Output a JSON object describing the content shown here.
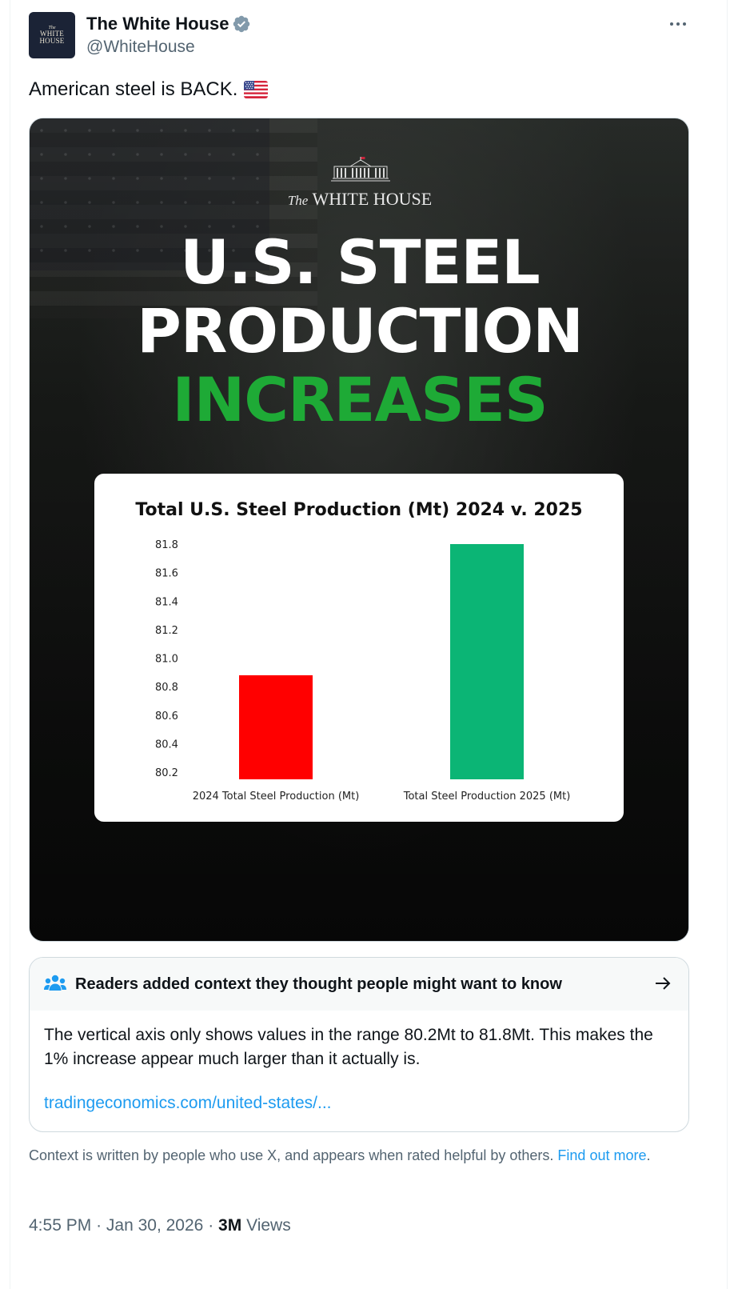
{
  "author": {
    "display_name": "The White House",
    "handle": "@WhiteHouse",
    "avatar_text": [
      "The",
      "WHITE",
      "HOUSE"
    ],
    "verified": true
  },
  "tweet": {
    "text": "American steel is BACK.",
    "emoji": "flag-united-states-icon"
  },
  "media": {
    "logo_the": "The",
    "logo_text": "WHITE HOUSE",
    "headline_line1": "U.S. STEEL",
    "headline_line2": "PRODUCTION",
    "headline_line3": "INCREASES",
    "headline_accent_color": "#1eaa36"
  },
  "chart_data": {
    "type": "bar",
    "title": "Total U.S. Steel Production (Mt) 2024 v. 2025",
    "categories": [
      "2024 Total Steel Production (Mt)",
      "Total Steel Production 2025 (Mt)"
    ],
    "values": [
      80.88,
      81.8
    ],
    "colors": [
      "#ff0000",
      "#0bb575"
    ],
    "yticks": [
      "81.8",
      "81.6",
      "81.4",
      "81.2",
      "81.0",
      "80.8",
      "80.6",
      "80.4",
      "80.2"
    ],
    "ylim": [
      80.15,
      81.8
    ],
    "xlabel": "",
    "ylabel": "",
    "grid": false
  },
  "community_note": {
    "header": "Readers added context they thought people might want to know",
    "body": "The vertical axis only shows values in the range 80.2Mt to 81.8Mt. This makes the 1% increase appear much larger than it actually is.",
    "link": "tradingeconomics.com/united-states/..."
  },
  "disclaimer": {
    "text": "Context is written by people who use X, and appears when rated helpful by others.",
    "link": "Find out more",
    "end": "."
  },
  "meta": {
    "time": "4:55 PM",
    "date": "Jan 30, 2026",
    "views_count": "3M",
    "views_label": "Views",
    "separator": "·"
  }
}
